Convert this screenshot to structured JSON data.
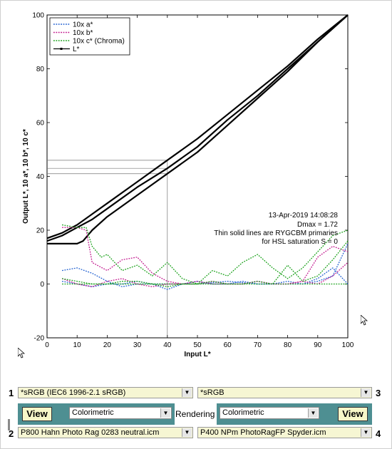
{
  "chart_data": {
    "type": "line",
    "xlabel": "Input L*",
    "ylabel": "Output L*, 10 a*, 10 b*, 10 c*",
    "xlim": [
      0,
      100
    ],
    "ylim": [
      -20,
      100
    ],
    "x_ticks": [
      "0",
      "10",
      "20",
      "30",
      "40",
      "50",
      "60",
      "70",
      "80",
      "90",
      "100"
    ],
    "y_ticks": [
      "-20",
      "0",
      "20",
      "40",
      "60",
      "80",
      "100"
    ],
    "grid": false,
    "legend_position": "top-left",
    "legend": [
      {
        "label": "10x a*",
        "color": "#1f5fd0",
        "style": "dotted"
      },
      {
        "label": "10x b*",
        "color": "#c2188e",
        "style": "dotted"
      },
      {
        "label": "10x c* (Chroma)",
        "color": "#18a018",
        "style": "dotted"
      },
      {
        "label": "L*",
        "color": "#000000",
        "style": "solid"
      }
    ],
    "annotations": [
      "13-Apr-2019 14:08:28",
      "Dmax = 1.72",
      "Thin solid lines are RYGCBM primaries",
      "for HSL saturation S = 0"
    ],
    "series": [
      {
        "name": "L*",
        "x": [
          0,
          5,
          10,
          15,
          20,
          30,
          40,
          50,
          60,
          70,
          80,
          90,
          100
        ],
        "y": [
          17,
          19,
          22,
          26,
          30,
          38,
          46,
          54,
          63,
          72,
          81,
          91,
          100
        ]
      },
      {
        "name": "L*",
        "x": [
          0,
          5,
          10,
          15,
          20,
          30,
          40,
          50,
          60,
          70,
          80,
          90,
          100
        ],
        "y": [
          16,
          18,
          21,
          24,
          28,
          36,
          43,
          51,
          61,
          70,
          80,
          90,
          100
        ]
      },
      {
        "name": "L*",
        "x": [
          0,
          5,
          10,
          12,
          15,
          20,
          30,
          40,
          50,
          60,
          70,
          80,
          90,
          100
        ],
        "y": [
          15,
          15,
          15,
          16,
          20,
          25,
          33,
          41,
          49,
          59,
          69,
          79,
          90,
          100
        ]
      },
      {
        "name": "10x a*",
        "x": [
          5,
          10,
          15,
          20,
          25,
          30,
          35,
          40,
          45,
          50,
          55,
          60,
          65,
          70,
          75,
          80,
          85,
          90,
          95,
          100
        ],
        "y": [
          1,
          0,
          -1,
          0,
          0,
          1,
          0,
          -2,
          0,
          1,
          0,
          0,
          1,
          0,
          0,
          1,
          0,
          2,
          6,
          0
        ]
      },
      {
        "name": "10x a*",
        "x": [
          5,
          10,
          15,
          20,
          25,
          30,
          35,
          40,
          50,
          60,
          70,
          80,
          85,
          90,
          95,
          100
        ],
        "y": [
          5,
          6,
          4,
          1,
          -1,
          0,
          0,
          0,
          0,
          1,
          0,
          0,
          0,
          1,
          3,
          15
        ]
      },
      {
        "name": "10x b*",
        "x": [
          5,
          10,
          13,
          15,
          20,
          25,
          30,
          35,
          40,
          45,
          50,
          55,
          60,
          65,
          70,
          75,
          80,
          85,
          90,
          95,
          100
        ],
        "y": [
          21,
          21,
          20,
          8,
          5,
          9,
          10,
          4,
          1,
          0,
          0,
          1,
          0,
          0,
          1,
          0,
          0,
          1,
          0,
          3,
          8
        ]
      },
      {
        "name": "10x b*",
        "x": [
          5,
          10,
          15,
          20,
          25,
          30,
          35,
          40,
          45,
          50,
          55,
          60,
          65,
          70,
          75,
          80,
          85,
          90,
          95,
          100
        ],
        "y": [
          2,
          0,
          -1,
          1,
          2,
          0,
          -1,
          0,
          0,
          1,
          0,
          0,
          0,
          1,
          0,
          0,
          1,
          10,
          14,
          12
        ]
      },
      {
        "name": "10x c* (Chroma)",
        "x": [
          5,
          10,
          13,
          15,
          18,
          20,
          25,
          30,
          35,
          40,
          45,
          50,
          55,
          60,
          65,
          70,
          75,
          80,
          85,
          90,
          95,
          100
        ],
        "y": [
          22,
          21,
          21,
          14,
          10,
          11,
          5,
          7,
          3,
          8,
          2,
          0,
          5,
          3,
          8,
          11,
          6,
          2,
          6,
          12,
          18,
          20
        ]
      },
      {
        "name": "10x c* (Chroma)",
        "x": [
          5,
          10,
          15,
          20,
          25,
          30,
          35,
          40,
          45,
          50,
          55,
          60,
          65,
          70,
          75,
          80,
          85,
          90,
          95,
          100
        ],
        "y": [
          2,
          1,
          0,
          0,
          1,
          1,
          0,
          -1,
          0,
          0,
          1,
          0,
          0,
          1,
          0,
          7,
          1,
          3,
          9,
          16
        ]
      },
      {
        "name": "10x c* (Chroma)",
        "x": [
          5,
          10,
          15,
          20,
          25,
          30,
          35,
          40,
          45,
          50,
          55,
          60,
          65,
          70,
          75,
          80,
          85,
          90,
          95,
          100
        ],
        "y": [
          0,
          0,
          0,
          0,
          0,
          0,
          0,
          0,
          0,
          0,
          0,
          0,
          0,
          0,
          0,
          0,
          0,
          0,
          0,
          0
        ]
      }
    ],
    "reference_lines": [
      {
        "input": 40,
        "outputs": [
          46,
          43,
          41
        ]
      }
    ]
  },
  "panel": {
    "top_left_number": "1",
    "top_right_number": "3",
    "bottom_left_number": "2",
    "bottom_right_number": "4",
    "profile_1": "*sRGB   (IEC6 1996-2.1 sRGB)",
    "profile_3": "*sRGB",
    "profile_2": "P800 Hahn Photo Rag 0283 neutral.icm",
    "profile_4": "P400 NPm PhotoRagFP Spyder.icm",
    "view_left": "View",
    "view_right": "View",
    "intent_left": "Colorimetric",
    "intent_right": "Colorimetric",
    "rendering_label": "Rendering",
    "dropdown_arrow": "▼"
  }
}
